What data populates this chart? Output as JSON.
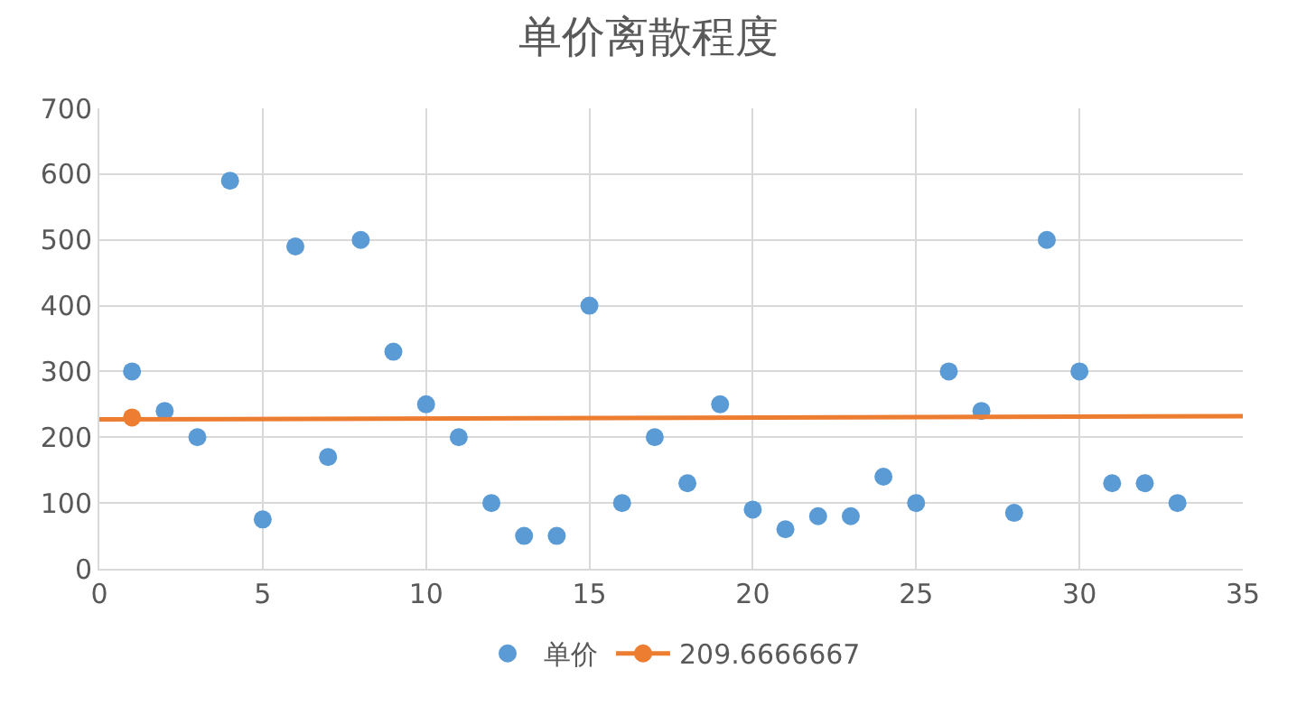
{
  "chart_data": {
    "type": "scatter",
    "title": "单价离散程度",
    "x": [
      1,
      2,
      3,
      4,
      5,
      6,
      7,
      8,
      9,
      10,
      11,
      12,
      13,
      14,
      15,
      16,
      17,
      18,
      19,
      20,
      21,
      22,
      23,
      24,
      25,
      26,
      27,
      28,
      29,
      30,
      31,
      32,
      33
    ],
    "series": [
      {
        "name": "单价",
        "color": "#5b9bd5",
        "values": [
          300,
          240,
          200,
          590,
          75,
          490,
          170,
          500,
          330,
          250,
          200,
          100,
          50,
          50,
          400,
          100,
          200,
          130,
          250,
          90,
          60,
          80,
          80,
          140,
          100,
          300,
          240,
          85,
          500,
          300,
          130,
          130,
          100
        ]
      },
      {
        "name": "209.6666667",
        "type": "line",
        "color": "#ed7d31",
        "x": [
          1
        ],
        "values": [
          230
        ]
      },
      {
        "type": "line",
        "color": "#ed7d31",
        "x": [
          0,
          35
        ],
        "values": [
          227,
          232
        ],
        "marker": "none"
      }
    ],
    "xlim": [
      0,
      35
    ],
    "xticks": [
      0,
      5,
      10,
      15,
      20,
      25,
      30,
      35
    ],
    "ylim": [
      0,
      700
    ],
    "yticks": [
      0,
      100,
      200,
      300,
      400,
      500,
      600,
      700
    ],
    "grid": true,
    "legend": "bottom",
    "marker": "circle",
    "line_style": "solid"
  }
}
